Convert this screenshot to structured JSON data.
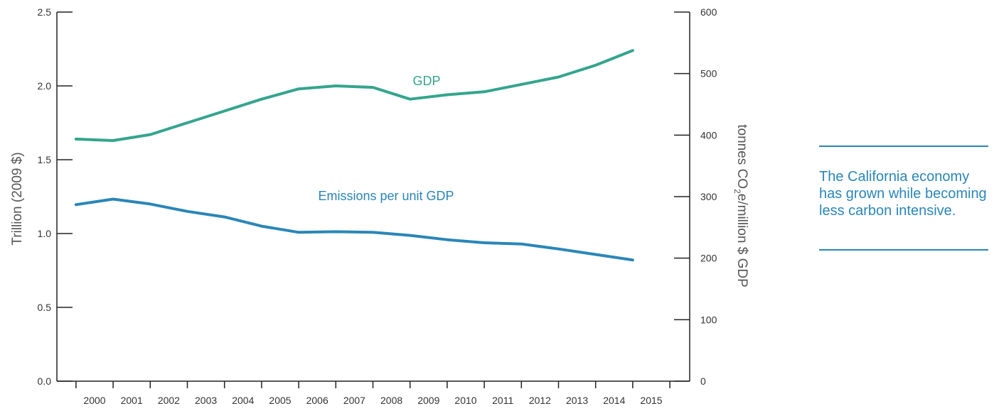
{
  "colors": {
    "gdp": "#34a58d",
    "emissions": "#2a86b8",
    "axis": "#222222",
    "text": "#333333"
  },
  "callout": {
    "text": "The California economy has grown while becoming less carbon intensive."
  },
  "chart_data": {
    "type": "line",
    "categories": [
      "2000",
      "2001",
      "2002",
      "2003",
      "2004",
      "2005",
      "2006",
      "2007",
      "2008",
      "2009",
      "2010",
      "2011",
      "2012",
      "2013",
      "2014",
      "2015"
    ],
    "left_axis": {
      "label": "Trillion (2009 $)",
      "ylim": [
        0,
        2.5
      ],
      "ticks": [
        "0.0",
        "0.5",
        "1.0",
        "1.5",
        "2.0",
        "2.5"
      ]
    },
    "right_axis": {
      "label_prefix": "tonnes CO",
      "label_subscript": "2",
      "label_suffix": "e/million $ GDP",
      "ylim": [
        0,
        600
      ],
      "ticks": [
        "0",
        "100",
        "200",
        "300",
        "400",
        "500",
        "600"
      ]
    },
    "grid": false,
    "series": [
      {
        "name": "GDP",
        "axis": "left",
        "color": "#34a58d",
        "x": [
          2000,
          2001,
          2002,
          2003,
          2004,
          2005,
          2006,
          2007,
          2008,
          2009,
          2010,
          2011,
          2012,
          2013,
          2014,
          2015
        ],
        "values": [
          1.64,
          1.63,
          1.67,
          1.75,
          1.83,
          1.91,
          1.98,
          2.0,
          1.99,
          1.91,
          1.94,
          1.96,
          2.01,
          2.06,
          2.14,
          2.24
        ]
      },
      {
        "name": "Emissions per unit GDP",
        "axis": "right",
        "color": "#2a86b8",
        "x": [
          2000,
          2001,
          2002,
          2003,
          2004,
          2005,
          2006,
          2007,
          2008,
          2009,
          2010,
          2011,
          2012,
          2013,
          2014,
          2015
        ],
        "values": [
          287,
          296,
          288,
          276,
          267,
          252,
          242,
          243,
          242,
          237,
          230,
          225,
          223,
          215,
          206,
          197
        ]
      }
    ]
  }
}
